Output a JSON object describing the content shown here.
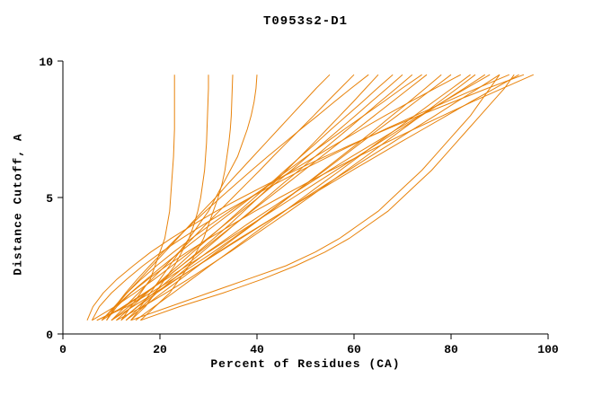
{
  "chart_data": {
    "type": "line",
    "title": "T0953s2-D1",
    "xlabel": "Percent of Residues (CA)",
    "ylabel": "Distance Cutoff, A",
    "xlim": [
      0,
      100
    ],
    "ylim": [
      0,
      10
    ],
    "x_ticks": [
      0,
      20,
      40,
      60,
      80,
      100
    ],
    "y_ticks": [
      0,
      5,
      10
    ],
    "grid": false,
    "legend": "none",
    "line_color": "#e8830c",
    "axis_color": "#000000",
    "background": "#ffffff",
    "y_values": [
      0.5,
      1,
      1.5,
      2,
      2.5,
      3,
      3.5,
      4,
      4.5,
      5,
      5.5,
      6,
      6.5,
      7,
      7.5,
      8,
      8.5,
      9,
      9.5
    ],
    "series": [
      [
        12,
        14,
        16,
        18,
        19,
        20,
        21,
        21.5,
        22,
        22.2,
        22.4,
        22.6,
        22.8,
        22.9,
        23,
        23,
        23,
        23,
        23
      ],
      [
        14,
        17,
        19,
        21,
        23,
        24.5,
        26,
        27,
        27.8,
        28.4,
        28.8,
        29.2,
        29.4,
        29.6,
        29.7,
        29.8,
        29.9,
        30,
        30
      ],
      [
        16,
        19,
        22,
        24,
        26,
        27.5,
        29,
        30,
        31,
        32,
        32.8,
        33.4,
        33.8,
        34.2,
        34.5,
        34.7,
        34.8,
        34.9,
        35
      ],
      [
        13,
        16,
        18,
        20,
        22,
        24,
        26,
        28,
        30,
        31.5,
        33,
        34.5,
        36,
        37,
        38,
        38.8,
        39.4,
        39.8,
        40
      ],
      [
        8,
        10.6,
        13.2,
        15.8,
        18.4,
        21,
        23.6,
        26.2,
        28.8,
        31.5,
        34,
        36.6,
        39.2,
        41.8,
        44.4,
        47,
        49.6,
        52.2,
        55
      ],
      [
        10,
        12.8,
        15.6,
        18.3,
        21.1,
        23.9,
        26.7,
        29.4,
        32.2,
        35,
        37.8,
        40.6,
        43.3,
        46.1,
        48.9,
        51.7,
        54.4,
        57.2,
        60
      ],
      [
        9,
        10.7,
        12.9,
        15.3,
        17.9,
        20.6,
        23.4,
        26.4,
        29.4,
        32.5,
        35.7,
        38.9,
        42.2,
        45.6,
        49,
        52.5,
        55.9,
        59.4,
        63
      ],
      [
        7,
        12.7,
        17,
        20.9,
        24.4,
        27.8,
        31.1,
        34.3,
        37.3,
        40.3,
        43.3,
        46.1,
        48.9,
        51.7,
        54.4,
        57.1,
        59.8,
        62.4,
        65
      ],
      [
        11,
        14.2,
        17.3,
        20.5,
        23.7,
        26.8,
        30,
        33.2,
        36.3,
        39.5,
        42.7,
        45.8,
        49,
        52.2,
        55.3,
        58.5,
        61.7,
        64.8,
        68
      ],
      [
        6,
        10.7,
        14.8,
        18.8,
        22.5,
        26.2,
        29.8,
        33.3,
        36.8,
        40.3,
        43.7,
        47.1,
        50.4,
        53.7,
        57,
        60.3,
        63.5,
        66.8,
        70
      ],
      [
        12,
        15.3,
        18.7,
        22,
        25.3,
        28.7,
        32,
        35.3,
        38.7,
        42,
        45.3,
        48.7,
        52,
        55.3,
        58.7,
        62,
        65.3,
        68.7,
        72
      ],
      [
        8,
        10.8,
        13.9,
        17.2,
        20.6,
        24.1,
        27.7,
        31.4,
        35.1,
        38.8,
        42.6,
        46.4,
        50.2,
        54.1,
        58,
        62,
        66,
        69.9,
        74
      ],
      [
        10,
        13.6,
        17.2,
        20.8,
        24.4,
        28.1,
        31.7,
        35.3,
        38.9,
        42.5,
        46.1,
        49.7,
        53.3,
        56.9,
        60.6,
        64.2,
        67.8,
        71.4,
        75
      ],
      [
        7,
        13.2,
        18,
        22.6,
        26.8,
        31,
        35,
        38.9,
        42.7,
        46.4,
        50.1,
        53.7,
        57.3,
        60.9,
        64.4,
        67.8,
        71.3,
        74.7,
        78
      ],
      [
        13,
        16.7,
        20.4,
        24.2,
        27.9,
        31.6,
        35.3,
        39.1,
        42.8,
        46.5,
        50.2,
        54,
        57.7,
        61.4,
        65.1,
        68.9,
        72.6,
        76.3,
        80
      ],
      [
        9,
        10.8,
        13.2,
        16.1,
        19.3,
        22.8,
        26.5,
        30.4,
        34.4,
        38.6,
        42.9,
        47.4,
        52,
        56.7,
        61.5,
        66.4,
        71.5,
        76.7,
        82
      ],
      [
        15,
        18.8,
        22.7,
        26.5,
        30.3,
        34.2,
        38,
        41.8,
        45.7,
        49.5,
        53.3,
        57.2,
        61,
        64.8,
        68.7,
        72.5,
        76.3,
        80.2,
        84
      ],
      [
        11,
        16.5,
        21.2,
        25.8,
        30.1,
        34.4,
        38.5,
        42.6,
        46.7,
        50.7,
        54.6,
        58.5,
        62.4,
        66.2,
        70,
        73.8,
        77.5,
        81.3,
        85
      ],
      [
        8,
        12.4,
        16.8,
        21.2,
        25.6,
        30,
        34.3,
        38.7,
        43.1,
        47.5,
        51.9,
        56.3,
        60.7,
        65.1,
        69.5,
        73.9,
        78.3,
        82.7,
        87
      ],
      [
        14,
        16.3,
        19.3,
        22.7,
        26.1,
        29.8,
        33.8,
        37.8,
        42,
        46.2,
        50.6,
        55,
        59.5,
        64.2,
        68.8,
        73.6,
        78.3,
        83.1,
        88
      ],
      [
        10,
        14.4,
        18.9,
        23.3,
        27.8,
        32.2,
        36.7,
        41.1,
        45.6,
        50,
        54.4,
        58.9,
        63.3,
        67.8,
        72.2,
        76.7,
        81.1,
        85.6,
        90
      ],
      [
        6,
        7.5,
        10,
        13.1,
        16.5,
        20.3,
        24.5,
        28.9,
        33.6,
        38.6,
        43.8,
        49.2,
        54.8,
        60.5,
        66.4,
        72.6,
        78.9,
        85.3,
        92
      ],
      [
        12,
        15.4,
        19.3,
        23.4,
        27.7,
        32,
        36.4,
        41,
        45.6,
        50.3,
        55,
        59.7,
        64.5,
        69.3,
        74.2,
        79.1,
        84,
        89,
        94
      ],
      [
        5,
        6.2,
        8.3,
        11.1,
        14.5,
        18.1,
        22.3,
        26.8,
        31.6,
        36.9,
        42.3,
        48,
        54,
        60.2,
        66.7,
        73.4,
        80.4,
        87.5,
        95
      ],
      [
        9,
        11.1,
        14,
        17.5,
        21.4,
        25.6,
        30.1,
        34.8,
        39.6,
        44.7,
        49.9,
        55.3,
        60.8,
        66.5,
        72.3,
        78.3,
        84.3,
        90.6,
        97
      ],
      [
        14,
        22,
        30,
        38,
        46,
        52,
        57,
        61,
        65,
        68,
        71,
        74,
        76.5,
        79,
        81.5,
        84,
        86,
        88,
        90
      ],
      [
        16,
        24,
        33,
        41,
        48,
        54,
        59,
        63,
        67,
        70,
        73,
        76,
        78.5,
        81,
        83.5,
        86,
        88.5,
        91,
        93
      ]
    ]
  }
}
